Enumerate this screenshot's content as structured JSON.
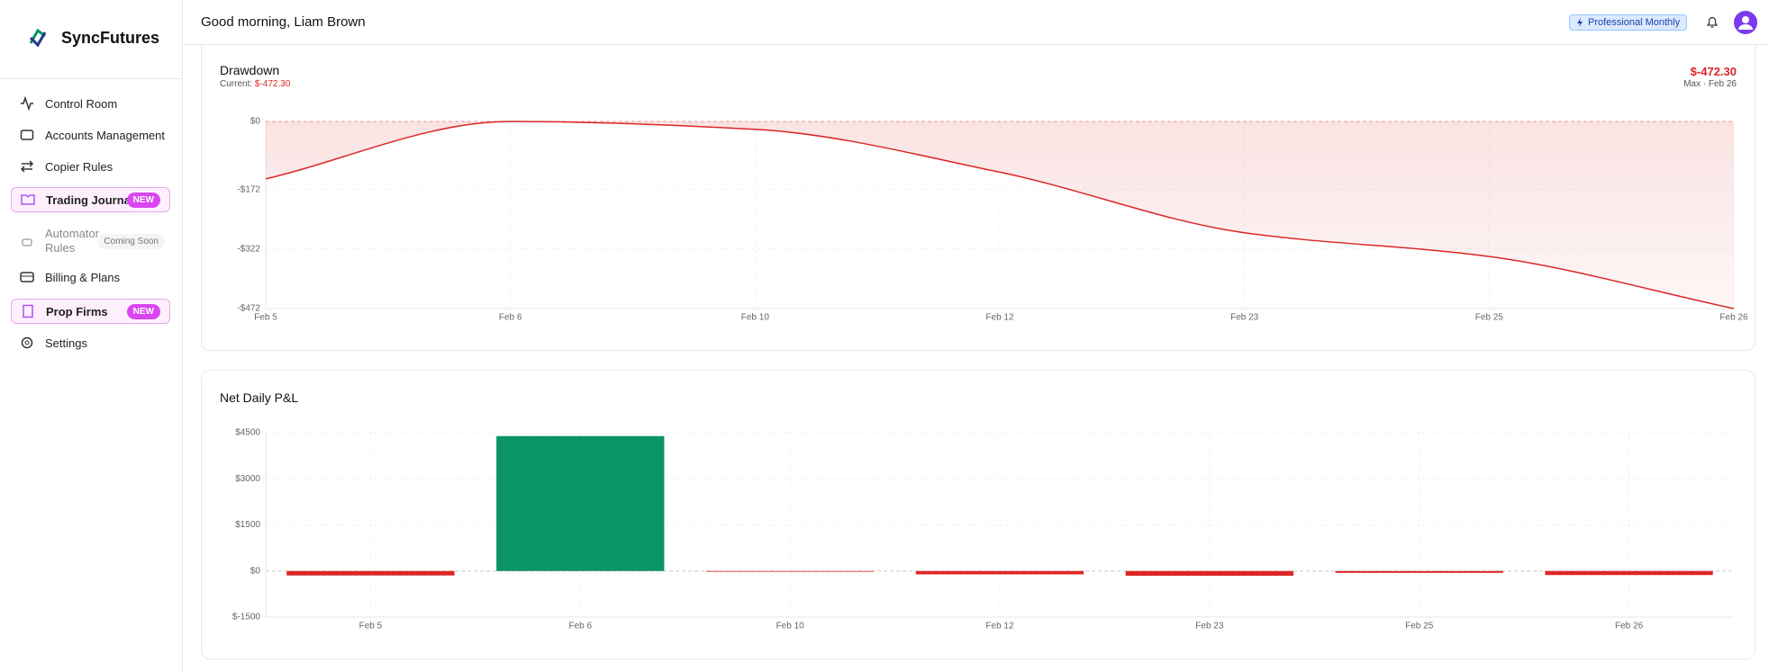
{
  "sidebar": {
    "brand": "SyncFutures",
    "nav": [
      {
        "label": "Control Room"
      },
      {
        "label": "Accounts Management"
      },
      {
        "label": "Copier Rules"
      },
      {
        "label": "Trading Journal",
        "badge": "NEW"
      },
      {
        "label": "Automator Rules",
        "badge": "Coming Soon"
      },
      {
        "label": "Billing & Plans"
      },
      {
        "label": "Prop Firms",
        "badge": "NEW"
      },
      {
        "label": "Settings"
      }
    ]
  },
  "header": {
    "greeting": "Good morning, Liam Brown",
    "plan": "Professional Monthly"
  },
  "chart_data": [
    {
      "type": "area",
      "title": "Drawdown",
      "current_label": "Current:",
      "current_value": "$-472.30",
      "max_value": "$-472.30",
      "max_label": "Max · Feb 26",
      "categories": [
        "Feb 5",
        "Feb 6",
        "Feb 10",
        "Feb 12",
        "Feb 23",
        "Feb 25",
        "Feb 26"
      ],
      "values": [
        -145,
        0,
        -20,
        -128,
        -281,
        -341,
        -472.3
      ],
      "color": "#dc2626",
      "ylim": [
        -472.3,
        0
      ],
      "yticks": [
        {
          "value": 0,
          "label": "$0"
        },
        {
          "value": -172,
          "label": "-$172"
        },
        {
          "value": -322,
          "label": "-$322"
        },
        {
          "value": -472.3,
          "label": "-$472"
        }
      ],
      "grid": true
    },
    {
      "type": "bar",
      "title": "Net Daily P&L",
      "categories": [
        "Feb 5",
        "Feb 6",
        "Feb 10",
        "Feb 12",
        "Feb 23",
        "Feb 25",
        "Feb 26"
      ],
      "values": [
        -145,
        4390,
        -20,
        -108,
        -153,
        -60,
        -131
      ],
      "positive_color": "#0a9467",
      "negative_color": "#dc2626",
      "ylim": [
        -1500,
        4500
      ],
      "yticks": [
        {
          "value": 4500,
          "label": "$4500"
        },
        {
          "value": 3000,
          "label": "$3000"
        },
        {
          "value": 1500,
          "label": "$1500"
        },
        {
          "value": 0,
          "label": "$0"
        },
        {
          "value": -1500,
          "label": "$-1500"
        }
      ],
      "grid": true
    }
  ]
}
